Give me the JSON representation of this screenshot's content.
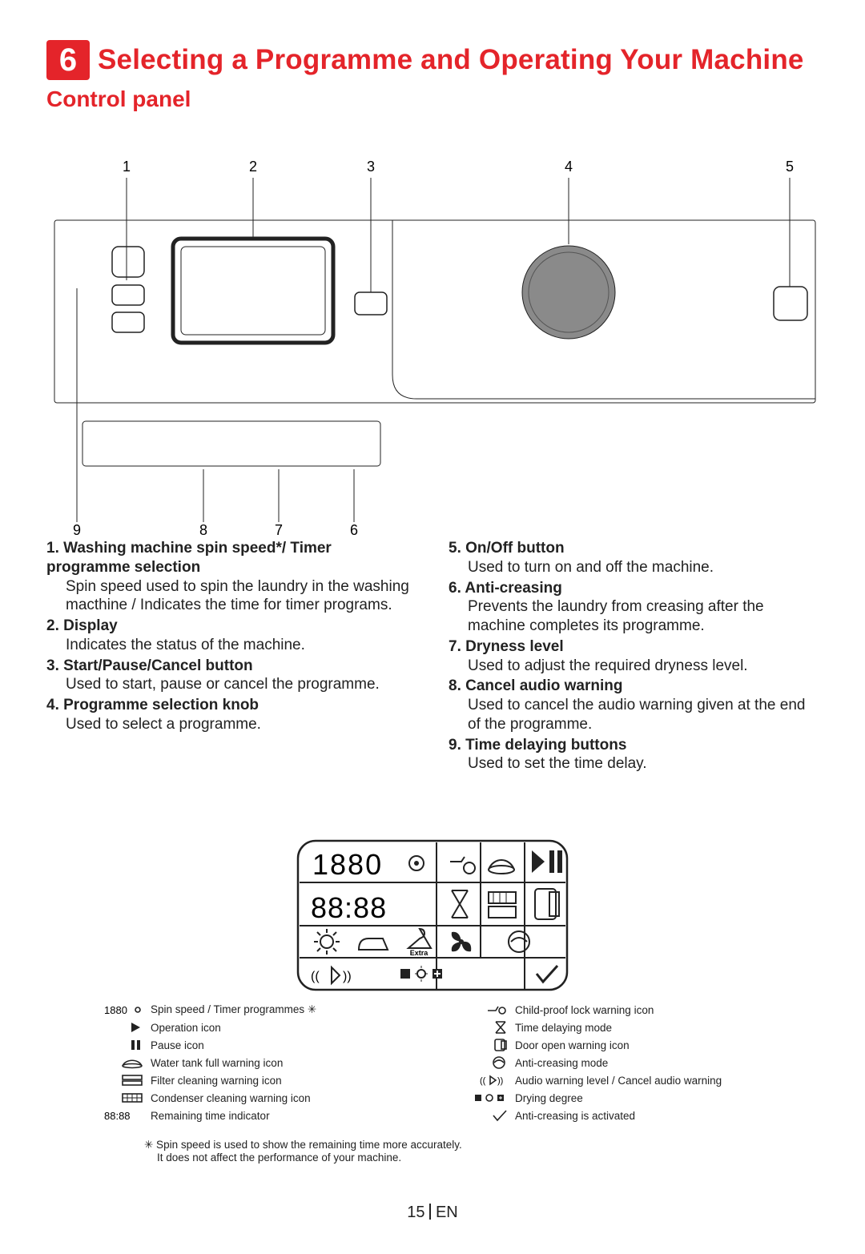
{
  "section": {
    "number": "6",
    "title": "Selecting a Programme and Operating Your Machine",
    "subsection": "Control panel"
  },
  "callouts": {
    "top": [
      "1",
      "2",
      "3",
      "4",
      "5"
    ],
    "bottom": [
      "9",
      "8",
      "7",
      "6"
    ]
  },
  "items_left": [
    {
      "num": "1.",
      "title": "Washing machine spin speed*/ Timer programme selection",
      "body": "Spin speed used to spin the laundry in the washing macthine / Indicates the time for timer programs."
    },
    {
      "num": "2.",
      "title": "Display",
      "body": "Indicates the status of the machine."
    },
    {
      "num": "3.",
      "title": "Start/Pause/Cancel button",
      "body": "Used to start, pause or cancel the programme."
    },
    {
      "num": "4.",
      "title": "Programme selection knob",
      "body": "Used to select a programme."
    }
  ],
  "items_right": [
    {
      "num": "5.",
      "title": "On/Off button",
      "body": "Used to turn on and off the machine."
    },
    {
      "num": "6.",
      "title": "Anti-creasing",
      "body": "Prevents the laundry from creasing after the machine completes its programme."
    },
    {
      "num": "7.",
      "title": "Dryness level",
      "body": "Used to adjust the required dryness level."
    },
    {
      "num": "8.",
      "title": "Cancel audio warning",
      "body": "Used to cancel the audio warning given at the end of the programme."
    },
    {
      "num": "9.",
      "title": "Time delaying buttons",
      "body": "Used to set the time delay."
    }
  ],
  "display_extra_label": "Extra",
  "legend_left": [
    {
      "icon": "spin",
      "label": "Spin speed / Timer programmes",
      "star": true
    },
    {
      "icon": "play",
      "label": "Operation icon"
    },
    {
      "icon": "pause",
      "label": "Pause icon"
    },
    {
      "icon": "tank",
      "label": "Water tank full warning icon"
    },
    {
      "icon": "filter",
      "label": "Filter cleaning warning icon"
    },
    {
      "icon": "condenser",
      "label": "Condenser cleaning warning icon"
    },
    {
      "icon": "time",
      "label": "Remaining time indicator"
    }
  ],
  "legend_right": [
    {
      "icon": "lock",
      "label": "Child-proof lock warning icon"
    },
    {
      "icon": "delay",
      "label": "Time delaying mode"
    },
    {
      "icon": "door",
      "label": "Door open warning icon"
    },
    {
      "icon": "anticrease",
      "label": "Anti-creasing mode"
    },
    {
      "icon": "audio",
      "label": "Audio warning level / Cancel audio warning"
    },
    {
      "icon": "drydeg",
      "label": "Drying degree"
    },
    {
      "icon": "check",
      "label": "Anti-creasing is activated"
    }
  ],
  "footnote": {
    "line1": "✳ Spin speed is used to show the remaining time more accurately.",
    "line2": "It does not affect the performance of your machine."
  },
  "pagefoot": {
    "page": "15",
    "lang": "EN"
  },
  "colors": {
    "accent": "#e4242a",
    "stroke": "#222222",
    "knob_fill": "#8a8a8a"
  }
}
